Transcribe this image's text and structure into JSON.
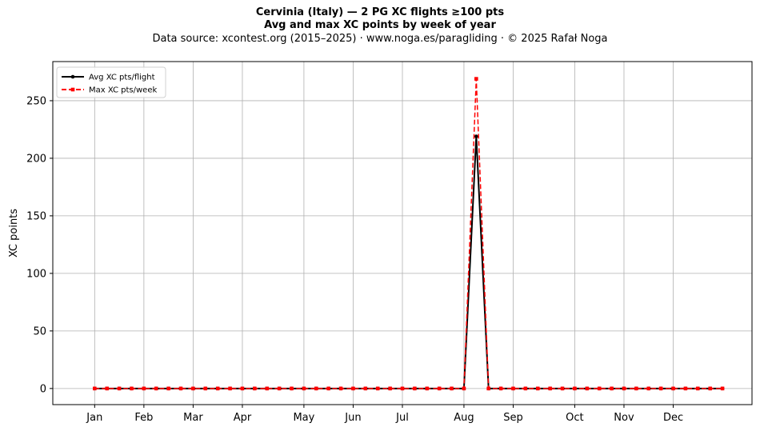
{
  "header": {
    "title_line1": "Cervinia (Italy)  —  2 PG XC flights ≥100 pts",
    "title_line2": "Avg and max XC points by week of year",
    "subtitle": "Data source: xcontest.org (2015–2025)  ·  www.noga.es/paragliding  ·  © 2025 Rafał Noga"
  },
  "chart_data": {
    "type": "line",
    "title": "Cervinia (Italy)  —  2 PG XC flights ≥100 pts",
    "subtitle": "Avg and max XC points by week of year",
    "xlabel": "",
    "ylabel": "XC points",
    "x_unit": "week of year",
    "xlim": [
      -2.4,
      54.4
    ],
    "ylim": [
      -14,
      284
    ],
    "grid": true,
    "legend_position": "top-left",
    "x_ticks": [
      {
        "label": "Jan",
        "week": 1
      },
      {
        "label": "Feb",
        "week": 5
      },
      {
        "label": "Mar",
        "week": 9
      },
      {
        "label": "Apr",
        "week": 13
      },
      {
        "label": "May",
        "week": 18
      },
      {
        "label": "Jun",
        "week": 22
      },
      {
        "label": "Jul",
        "week": 26
      },
      {
        "label": "Aug",
        "week": 31
      },
      {
        "label": "Sep",
        "week": 35
      },
      {
        "label": "Oct",
        "week": 40
      },
      {
        "label": "Nov",
        "week": 44
      },
      {
        "label": "Dec",
        "week": 48
      }
    ],
    "y_ticks": [
      0,
      50,
      100,
      150,
      200,
      250
    ],
    "x": [
      1,
      2,
      3,
      4,
      5,
      6,
      7,
      8,
      9,
      10,
      11,
      12,
      13,
      14,
      15,
      16,
      17,
      18,
      19,
      20,
      21,
      22,
      23,
      24,
      25,
      26,
      27,
      28,
      29,
      30,
      31,
      32,
      33,
      34,
      35,
      36,
      37,
      38,
      39,
      40,
      41,
      42,
      43,
      44,
      45,
      46,
      47,
      48,
      49,
      50,
      51,
      52
    ],
    "series": [
      {
        "name": "Avg XC pts/flight",
        "color": "#000000",
        "line_style": "solid",
        "marker": "circle",
        "values": [
          0,
          0,
          0,
          0,
          0,
          0,
          0,
          0,
          0,
          0,
          0,
          0,
          0,
          0,
          0,
          0,
          0,
          0,
          0,
          0,
          0,
          0,
          0,
          0,
          0,
          0,
          0,
          0,
          0,
          0,
          0,
          219,
          0,
          0,
          0,
          0,
          0,
          0,
          0,
          0,
          0,
          0,
          0,
          0,
          0,
          0,
          0,
          0,
          0,
          0,
          0,
          0
        ]
      },
      {
        "name": "Max XC pts/week",
        "color": "#ff0000",
        "line_style": "dashed",
        "marker": "square",
        "values": [
          0,
          0,
          0,
          0,
          0,
          0,
          0,
          0,
          0,
          0,
          0,
          0,
          0,
          0,
          0,
          0,
          0,
          0,
          0,
          0,
          0,
          0,
          0,
          0,
          0,
          0,
          0,
          0,
          0,
          0,
          0,
          269,
          0,
          0,
          0,
          0,
          0,
          0,
          0,
          0,
          0,
          0,
          0,
          0,
          0,
          0,
          0,
          0,
          0,
          0,
          0,
          0
        ]
      }
    ]
  }
}
